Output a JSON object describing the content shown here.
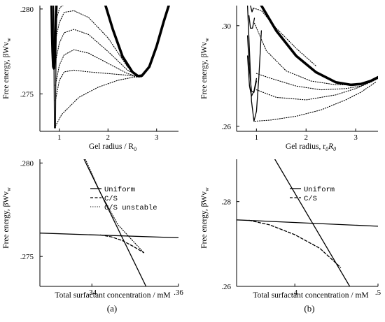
{
  "panel_labels": [
    "(a)",
    "(b)"
  ],
  "chart_data": [
    {
      "id": "a-top",
      "type": "line",
      "xlabel": "Gel radius / R",
      "xlabel_sub": "0",
      "ylabel": "Free energy, βWv",
      "ylabel_sub": "w",
      "xlim": [
        0.6,
        3.45
      ],
      "ylim": [
        0.2728,
        0.2802
      ],
      "xticks": [
        {
          "value": 1,
          "label": "1"
        },
        {
          "value": 2,
          "label": "2"
        },
        {
          "value": 3,
          "label": "3"
        }
      ],
      "yticks": [
        {
          "value": 0.275,
          "label": ".275"
        },
        {
          "value": 0.28,
          "label": ".280"
        }
      ],
      "series": [
        {
          "style": "thick",
          "x": [
            1.95,
            2.1,
            2.3,
            2.5,
            2.62,
            2.7,
            2.85,
            3.0,
            3.15,
            3.25
          ],
          "y": [
            0.2802,
            0.2788,
            0.2772,
            0.2763,
            0.27605,
            0.27608,
            0.2766,
            0.2778,
            0.2793,
            0.2802
          ]
        },
        {
          "style": "thick",
          "x": [
            0.84,
            0.85,
            0.86,
            0.875,
            0.89,
            0.905,
            0.92,
            0.93,
            0.94
          ],
          "y": [
            0.2802,
            0.2786,
            0.2775,
            0.2766,
            0.2765,
            0.2772,
            0.2785,
            0.2796,
            0.2802
          ]
        },
        {
          "style": "solid",
          "x": [
            0.88,
            0.9
          ],
          "y": [
            0.2802,
            0.273
          ]
        },
        {
          "style": "solid",
          "x": [
            0.92,
            0.94
          ],
          "y": [
            0.273,
            0.2802
          ]
        },
        {
          "style": "dotted",
          "x": [
            0.9,
            1.05,
            1.4,
            1.8,
            2.2,
            2.55,
            2.7
          ],
          "y": [
            0.273,
            0.2738,
            0.2748,
            0.2754,
            0.2758,
            0.276,
            0.276
          ]
        },
        {
          "style": "dotted",
          "x": [
            0.92,
            1.0,
            1.1,
            1.3,
            1.6,
            2.0,
            2.4,
            2.65
          ],
          "y": [
            0.2746,
            0.2758,
            0.2763,
            0.2764,
            0.2763,
            0.2762,
            0.2761,
            0.276
          ]
        },
        {
          "style": "dotted",
          "x": [
            0.92,
            1.0,
            1.1,
            1.3,
            1.6,
            2.0,
            2.4,
            2.65
          ],
          "y": [
            0.2755,
            0.2767,
            0.2773,
            0.2776,
            0.2774,
            0.2768,
            0.2762,
            0.276
          ]
        },
        {
          "style": "dotted",
          "x": [
            0.93,
            1.0,
            1.1,
            1.3,
            1.6,
            2.0,
            2.4,
            2.65
          ],
          "y": [
            0.277,
            0.278,
            0.2786,
            0.2788,
            0.2785,
            0.2775,
            0.2764,
            0.276
          ]
        },
        {
          "style": "dotted",
          "x": [
            0.94,
            1.0,
            1.1,
            1.3,
            1.6,
            2.0,
            2.4,
            2.65
          ],
          "y": [
            0.2784,
            0.2792,
            0.2798,
            0.2799,
            0.2795,
            0.2783,
            0.2766,
            0.276
          ]
        },
        {
          "style": "dotted",
          "x": [
            0.95,
            1.0,
            1.05,
            1.1
          ],
          "y": [
            0.2795,
            0.28,
            0.2802,
            0.2802
          ]
        }
      ]
    },
    {
      "id": "b-top",
      "type": "line",
      "xlabel": "Gel radius, r",
      "xlabel_parts": [
        "0",
        "R",
        "0"
      ],
      "ylabel": "Free energy, βWv",
      "ylabel_sub": "w",
      "xlim": [
        0.6,
        3.45
      ],
      "ylim": [
        0.258,
        0.308
      ],
      "xticks": [
        {
          "value": 1,
          "label": "1"
        },
        {
          "value": 2,
          "label": "2"
        },
        {
          "value": 3,
          "label": "3"
        }
      ],
      "yticks": [
        {
          "value": 0.26,
          "label": ".26"
        },
        {
          "value": 0.3,
          "label": ".30"
        }
      ],
      "series": [
        {
          "style": "thick",
          "x": [
            1.1,
            1.4,
            1.8,
            2.2,
            2.6,
            2.9,
            3.1,
            3.3,
            3.45
          ],
          "y": [
            0.308,
            0.298,
            0.288,
            0.2815,
            0.2775,
            0.2765,
            0.2768,
            0.278,
            0.2795
          ]
        },
        {
          "style": "solid",
          "x": [
            0.82,
            0.86,
            0.9,
            0.95,
            1.0,
            1.05,
            1.1
          ],
          "y": [
            0.308,
            0.29,
            0.27,
            0.262,
            0.266,
            0.28,
            0.298
          ]
        },
        {
          "style": "solid",
          "x": [
            0.82,
            0.86,
            0.9,
            0.95,
            1.0
          ],
          "y": [
            0.296,
            0.282,
            0.274,
            0.2735,
            0.278
          ]
        },
        {
          "style": "solid",
          "x": [
            0.82,
            0.86,
            0.9,
            0.95,
            1.0
          ],
          "y": [
            0.288,
            0.276,
            0.272,
            0.274,
            0.279
          ]
        },
        {
          "style": "solid",
          "x": [
            0.85,
            0.88,
            0.92,
            0.96
          ],
          "y": [
            0.304,
            0.299,
            0.299,
            0.303
          ]
        },
        {
          "style": "solid",
          "x": [
            0.88,
            0.91,
            0.94
          ],
          "y": [
            0.308,
            0.3055,
            0.307
          ]
        },
        {
          "style": "dotted",
          "x": [
            0.97,
            1.3,
            1.8,
            2.3,
            2.8,
            3.1,
            3.4
          ],
          "y": [
            0.262,
            0.2625,
            0.264,
            0.2665,
            0.2705,
            0.2735,
            0.2775
          ]
        },
        {
          "style": "dotted",
          "x": [
            1.0,
            1.4,
            2.0,
            2.6,
            3.0,
            3.3,
            3.45
          ],
          "y": [
            0.2745,
            0.2715,
            0.2705,
            0.2725,
            0.275,
            0.2775,
            0.279
          ]
        },
        {
          "style": "dotted",
          "x": [
            1.0,
            1.3,
            1.8,
            2.3,
            2.8,
            3.1,
            3.45
          ],
          "y": [
            0.281,
            0.279,
            0.276,
            0.2745,
            0.275,
            0.276,
            0.279
          ]
        },
        {
          "style": "dotted",
          "x": [
            0.96,
            1.2,
            1.6,
            2.1,
            2.6,
            3.0,
            3.4
          ],
          "y": [
            0.301,
            0.29,
            0.282,
            0.278,
            0.2765,
            0.2765,
            0.2785
          ]
        },
        {
          "style": "dotted",
          "x": [
            0.94,
            1.1,
            1.4,
            1.8,
            2.2
          ],
          "y": [
            0.307,
            0.306,
            0.299,
            0.291,
            0.284
          ]
        }
      ]
    },
    {
      "id": "a-bottom",
      "type": "line",
      "xlabel": "Total surfactant concentration / mM",
      "ylabel": "Free energy, βWv",
      "ylabel_sub": "w",
      "xlim": [
        0.328,
        0.36
      ],
      "ylim": [
        0.2734,
        0.2802
      ],
      "xticks": [
        {
          "value": 0.34,
          "label": ".34"
        },
        {
          "value": 0.36,
          "label": ".36"
        }
      ],
      "yticks": [
        {
          "value": 0.275,
          "label": ".275"
        },
        {
          "value": 0.28,
          "label": ".280"
        }
      ],
      "legend": {
        "position": "top-right",
        "entries": [
          {
            "label": "Uniform",
            "style": "solid"
          },
          {
            "label": "C/S",
            "style": "dashed"
          },
          {
            "label": "C/S unstable",
            "style": "dotted"
          }
        ]
      },
      "series": [
        {
          "name": "Uniform",
          "style": "solid",
          "x": [
            0.328,
            0.36
          ],
          "y": [
            0.27625,
            0.276
          ]
        },
        {
          "name": "Uniform",
          "style": "solid",
          "x": [
            0.3382,
            0.3525
          ],
          "y": [
            0.2802,
            0.2734
          ]
        },
        {
          "name": "C/S",
          "style": "dashed",
          "x": [
            0.342,
            0.3445,
            0.347,
            0.3495,
            0.352
          ],
          "y": [
            0.27615,
            0.27605,
            0.27585,
            0.27555,
            0.2752
          ]
        },
        {
          "name": "C/S unstable",
          "style": "dotted",
          "x": [
            0.3385,
            0.342,
            0.346,
            0.35,
            0.352
          ],
          "y": [
            0.2802,
            0.2784,
            0.2767,
            0.2757,
            0.2752
          ]
        }
      ]
    },
    {
      "id": "b-bottom",
      "type": "line",
      "xlabel": "Total surfactant concentration / mM",
      "ylabel": "Free energy, βWv",
      "ylabel_sub": "w",
      "xlim": [
        0.33,
        0.5
      ],
      "ylim": [
        0.26,
        0.29
      ],
      "xticks": [
        {
          "value": 0.4,
          "label": ".4"
        },
        {
          "value": 0.5,
          "label": ".5"
        }
      ],
      "yticks": [
        {
          "value": 0.26,
          "label": ".26"
        },
        {
          "value": 0.28,
          "label": ".28"
        }
      ],
      "legend": {
        "position": "top-right",
        "entries": [
          {
            "label": "Uniform",
            "style": "solid"
          },
          {
            "label": "C/S",
            "style": "dashed"
          }
        ]
      },
      "series": [
        {
          "name": "Uniform",
          "style": "solid",
          "x": [
            0.33,
            0.5
          ],
          "y": [
            0.2757,
            0.2742
          ]
        },
        {
          "name": "Uniform",
          "style": "solid",
          "x": [
            0.376,
            0.466
          ],
          "y": [
            0.29,
            0.26
          ]
        },
        {
          "name": "C/S",
          "style": "dashed",
          "x": [
            0.345,
            0.37,
            0.4,
            0.43,
            0.455
          ],
          "y": [
            0.2756,
            0.2745,
            0.2722,
            0.269,
            0.2645
          ]
        }
      ]
    }
  ]
}
